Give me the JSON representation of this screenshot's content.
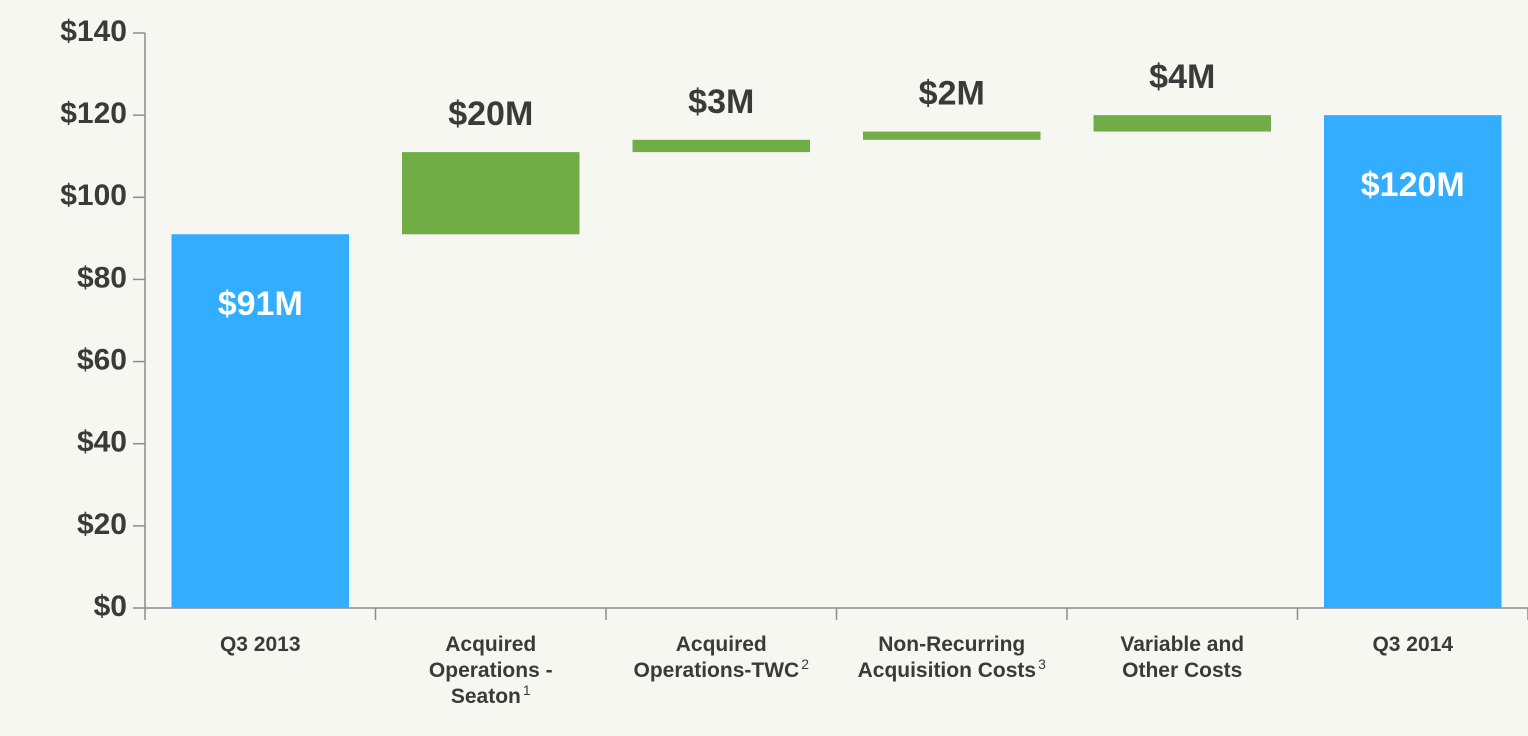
{
  "chart_data": {
    "type": "waterfall",
    "categories": [
      "Q3 2013",
      "Acquired\nOperations -\nSeaton",
      "Acquired\nOperations-TWC",
      "Non-Recurring\nAcquisition Costs",
      "Variable and\nOther Costs",
      "Q3 2014"
    ],
    "category_notes": [
      null,
      "1",
      "2",
      "3",
      null,
      null
    ],
    "measure": [
      "absolute",
      "relative",
      "relative",
      "relative",
      "relative",
      "absolute"
    ],
    "values": [
      91,
      20,
      3,
      2,
      4,
      120
    ],
    "value_labels": [
      "$91M",
      "$20M",
      "$3M",
      "$2M",
      "$4M",
      "$120M"
    ],
    "colors": [
      "#33adff",
      "#70ad47",
      "#70ad47",
      "#70ad47",
      "#70ad47",
      "#33adff"
    ],
    "ylim": [
      0,
      140
    ],
    "yticks": [
      {
        "value": 0,
        "label": "$0"
      },
      {
        "value": 20,
        "label": "$20"
      },
      {
        "value": 40,
        "label": "$40"
      },
      {
        "value": 60,
        "label": "$60"
      },
      {
        "value": 80,
        "label": "$80"
      },
      {
        "value": 100,
        "label": "$100"
      },
      {
        "value": 120,
        "label": "$120"
      },
      {
        "value": 140,
        "label": "$140"
      }
    ]
  }
}
